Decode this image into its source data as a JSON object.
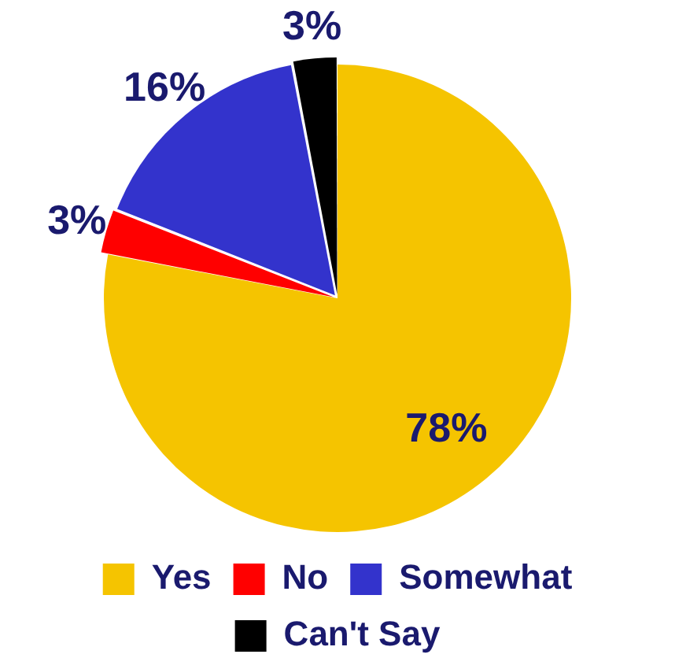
{
  "chart_data": {
    "type": "pie",
    "categories": [
      "Yes",
      "No",
      "Somewhat",
      "Can't Say"
    ],
    "values": [
      78,
      3,
      16,
      3
    ],
    "colors": [
      "#f5c400",
      "#ff0000",
      "#3333cc",
      "#000000"
    ],
    "value_labels": [
      "78%",
      "3%",
      "16%",
      "3%"
    ],
    "legend": "bottom"
  }
}
